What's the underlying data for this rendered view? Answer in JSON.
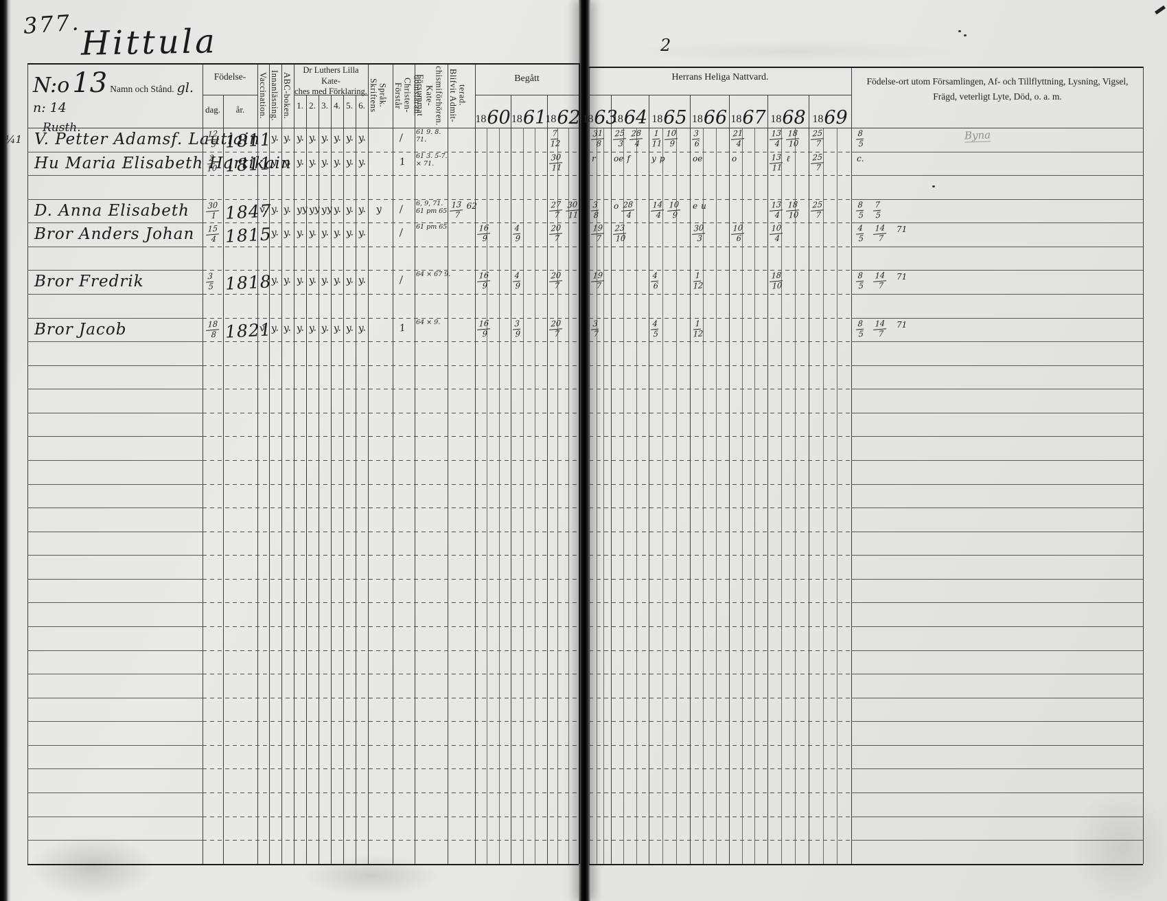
{
  "page": {
    "folio_number": "377.",
    "village_title": "Hittula",
    "right_page_number": "2"
  },
  "header": {
    "name_col": {
      "no_label": "N:o",
      "no_value": "13",
      "main_label": "Namn och Stånd.",
      "annotation": "gl. n: 14",
      "sub_annotation": "Rusth."
    },
    "birth": {
      "label": "Födelse-",
      "day": "dag.",
      "year": "år."
    },
    "rotated_labels": [
      "Vaccination.",
      "Innanläsning.",
      "ABC-boken.",
      "Skriftens Språk.",
      "Förstår Christen- domsläran.",
      "Försummat Kate- chismiförhören.",
      "Blifvit Admit- terad."
    ],
    "catechism": {
      "label_line1": "Dr Luthers Lilla Kate-",
      "label_line2": "ches med Förklaring.",
      "numbers": [
        "1.",
        "2.",
        "3.",
        "4.",
        "5.",
        "6."
      ]
    },
    "begatt": {
      "label": "Begått",
      "years": [
        "1860",
        "1861",
        "1862"
      ]
    },
    "nattvard": {
      "label": "Herrans Heliga Nattvard.",
      "years": [
        "1863",
        "1864",
        "1865",
        "1866",
        "1867",
        "1868",
        "1869"
      ]
    },
    "notes_col": {
      "line1": "Födelse-ort utom Församlingen, Af- och Tillflyttning, Lysning, Vigsel,",
      "line2": "Frägd, veterligt Lyte, Död, o. a. m."
    }
  },
  "records": [
    {
      "row": 0,
      "margin": "¼1",
      "name": "V. Petter Adamsf. Lautiain",
      "birth_day": "12/5",
      "birth_year": "1811",
      "marks": {
        "innan": "y.",
        "abc": "y.",
        "k1": "y.",
        "k2": "y.",
        "k3": "y.",
        "k4": "y.",
        "k5": "y.",
        "k6": "y.",
        "forstar": "/"
      },
      "forsummat": [
        "61 9. 8.",
        "71."
      ],
      "years": {
        "1862": [
          "7/12"
        ],
        "1863": [
          "31/8"
        ],
        "1864": [
          "25/3",
          "28/4"
        ],
        "1865": [
          "1/11",
          "10/9"
        ],
        "1866": [
          "3/6"
        ],
        "1867": [
          "21/4"
        ],
        "1868": [
          "13/4",
          "18/10"
        ],
        "1869": [
          "25/7"
        ]
      },
      "notes": [
        "8/5"
      ],
      "far_note": "Byna"
    },
    {
      "row": 1,
      "name": "Hu Maria Elisabeth Hartikain",
      "birth_day": "2/10",
      "birth_year": "1811",
      "marks": {
        "innan": "y.",
        "abc": "y.",
        "k1": "y.",
        "k2": "y.",
        "k3": "y.",
        "k4": "y.",
        "k5": "y.",
        "k6": "y.",
        "forstar": "1"
      },
      "forsummat": [
        "61 3. 5-7.",
        "× 71."
      ],
      "years": {
        "1862": [
          "30/11"
        ],
        "1863": [
          "r"
        ],
        "1864": [
          "oe",
          "f"
        ],
        "1865": [
          "y",
          "p"
        ],
        "1866": [
          "oe"
        ],
        "1867": [
          "o"
        ],
        "1868": [
          "13/11",
          "ℓ"
        ],
        "1869": [
          "25/7"
        ]
      },
      "notes": [
        "c."
      ]
    },
    {
      "row": 3,
      "name": "D. Anna Elisabeth",
      "birth_day": "30/1",
      "birth_year": "1847",
      "marks": {
        "vacc": "v.",
        "innan": "y.",
        "abc": "y.",
        "k1": "yy",
        "k2": "yy",
        "k3": "yy",
        "k4": "y.",
        "k5": "y.",
        "k6": "y.",
        "skrift": "y",
        "forstar": "/"
      },
      "forsummat": [
        "6, 9, 71.",
        "61 pm 65"
      ],
      "admitterad": "13/7 62",
      "years": {
        "1862": [
          "27/7",
          "30/11"
        ],
        "1863": [
          "3/8"
        ],
        "1864": [
          "o",
          "28/4"
        ],
        "1865": [
          "14/4",
          "10/9"
        ],
        "1866": [
          "e u"
        ],
        "1868": [
          "13/4",
          "18/10"
        ],
        "1869": [
          "25/7"
        ]
      },
      "notes": [
        "8/5",
        "7/5"
      ]
    },
    {
      "row": 4,
      "name": "Bror Anders Johan",
      "birth_day": "15/4",
      "birth_year": "1815",
      "marks": {
        "innan": "y.",
        "abc": "y.",
        "k1": "y.",
        "k2": "y.",
        "k3": "y.",
        "k4": "y.",
        "k5": "y.",
        "k6": "y.",
        "forstar": "/"
      },
      "forsummat": [
        "61 pm 65"
      ],
      "years": {
        "1860": [
          "16/9"
        ],
        "1861": [
          "4/9"
        ],
        "1862": [
          "20/7"
        ],
        "1863": [
          "19/7"
        ],
        "1864": [
          "23/10"
        ],
        "1866": [
          "30/3"
        ],
        "1867": [
          "10/6"
        ],
        "1868": [
          "10/4"
        ]
      },
      "notes": [
        "4/5",
        "14/7 71"
      ]
    },
    {
      "row": 6,
      "name": "Bror Fredrik",
      "birth_day": "3/5",
      "birth_year": "1818",
      "marks": {
        "innan": "y.",
        "abc": "y.",
        "k1": "y.",
        "k2": "y.",
        "k3": "y.",
        "k4": "y.",
        "k5": "y.",
        "k6": "y.",
        "forstar": "/"
      },
      "forsummat": [
        "64 × 67 9."
      ],
      "years": {
        "1860": [
          "16/9"
        ],
        "1861": [
          "4/9"
        ],
        "1862": [
          "20/7"
        ],
        "1863": [
          "19/7"
        ],
        "1865": [
          "4/6"
        ],
        "1866": [
          "1/12"
        ],
        "1868": [
          "18/10"
        ]
      },
      "notes": [
        "8/5",
        "14/7 71"
      ]
    },
    {
      "row": 8,
      "name": "Bror Jacob",
      "birth_day": "18/8",
      "birth_year": "1821",
      "marks": {
        "vacc": "v.",
        "innan": "y.",
        "abc": "y.",
        "k1": "y.",
        "k2": "y.",
        "k3": "y.",
        "k4": "y.",
        "k5": "y.",
        "k6": "y.",
        "forstar": "1"
      },
      "forsummat": [
        "64 × 9."
      ],
      "years": {
        "1860": [
          "16/9"
        ],
        "1861": [
          "3/9"
        ],
        "1862": [
          "20/7"
        ],
        "1863": [
          "3/7"
        ],
        "1865": [
          "4/5"
        ],
        "1866": [
          "1/12"
        ]
      },
      "notes": [
        "8/5",
        "14/7 71"
      ]
    }
  ]
}
